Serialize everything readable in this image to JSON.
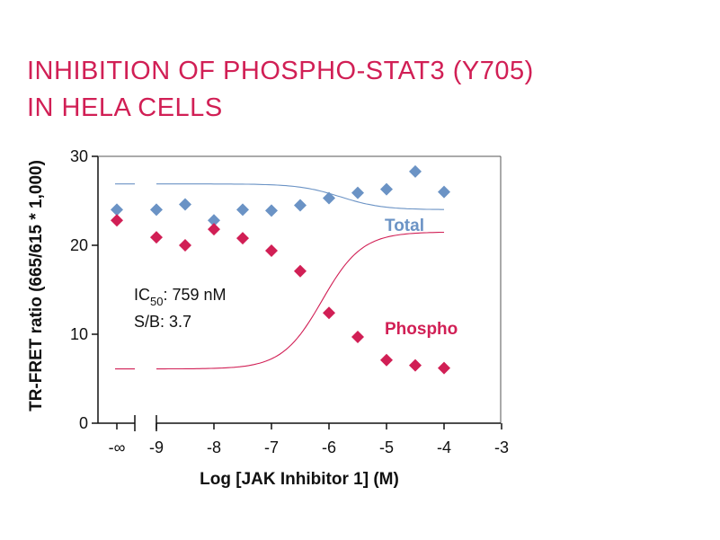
{
  "title_lines": [
    "INHIBITION OF PHOSPHO-STAT3 (Y705)",
    "IN HELA CELLS"
  ],
  "colors": {
    "title": "#d11f55",
    "total": "#6b93c5",
    "phospho": "#d11f55",
    "axis": "#111111",
    "frame": "#555555"
  },
  "chart_data": {
    "type": "scatter",
    "title": "INHIBITION OF PHOSPHO-STAT3 (Y705) IN HELA CELLS",
    "xlabel": "Log [JAK Inhibitor 1] (M)",
    "ylabel": "TR-FRET ratio (665/615 * 1,000)",
    "xlim": [
      -9,
      -3
    ],
    "ylim": [
      0,
      30
    ],
    "x_ticks": [
      "-∞",
      "-9",
      "-8",
      "-7",
      "-6",
      "-5",
      "-4",
      "-3"
    ],
    "y_ticks": [
      "0",
      "10",
      "20",
      "30"
    ],
    "axis_break": true,
    "grid": false,
    "series": [
      {
        "name": "Total",
        "color": "#6b93c5",
        "marker": "diamond",
        "zero_point": 24.0,
        "x": [
          -9,
          -8.5,
          -8,
          -7.5,
          -7,
          -6.5,
          -6,
          -5.5,
          -5,
          -4.5,
          -4
        ],
        "y": [
          24.0,
          24.6,
          22.8,
          24.0,
          23.9,
          24.5,
          25.3,
          25.9,
          26.3,
          28.3,
          26.0
        ],
        "fit": {
          "bottom": 24.0,
          "top": 26.9,
          "log_ec50": -5.8,
          "hill": -1.2
        }
      },
      {
        "name": "Phospho",
        "color": "#d11f55",
        "marker": "diamond",
        "zero_point": 22.8,
        "x": [
          -9,
          -8.5,
          -8,
          -7.5,
          -7,
          -6.5,
          -6,
          -5.5,
          -5,
          -4.5,
          -4
        ],
        "y": [
          20.9,
          20.0,
          21.8,
          20.8,
          19.4,
          17.1,
          12.4,
          9.7,
          7.1,
          6.5,
          6.2
        ],
        "fit": {
          "top": 21.5,
          "bottom": 6.1,
          "log_ec50": -6.12,
          "hill": 1.25
        }
      }
    ],
    "annotations": [
      {
        "prefix": "IC",
        "subscript": "50",
        "suffix": ": 759 nM"
      },
      {
        "text": "S/B: 3.7"
      }
    ]
  }
}
